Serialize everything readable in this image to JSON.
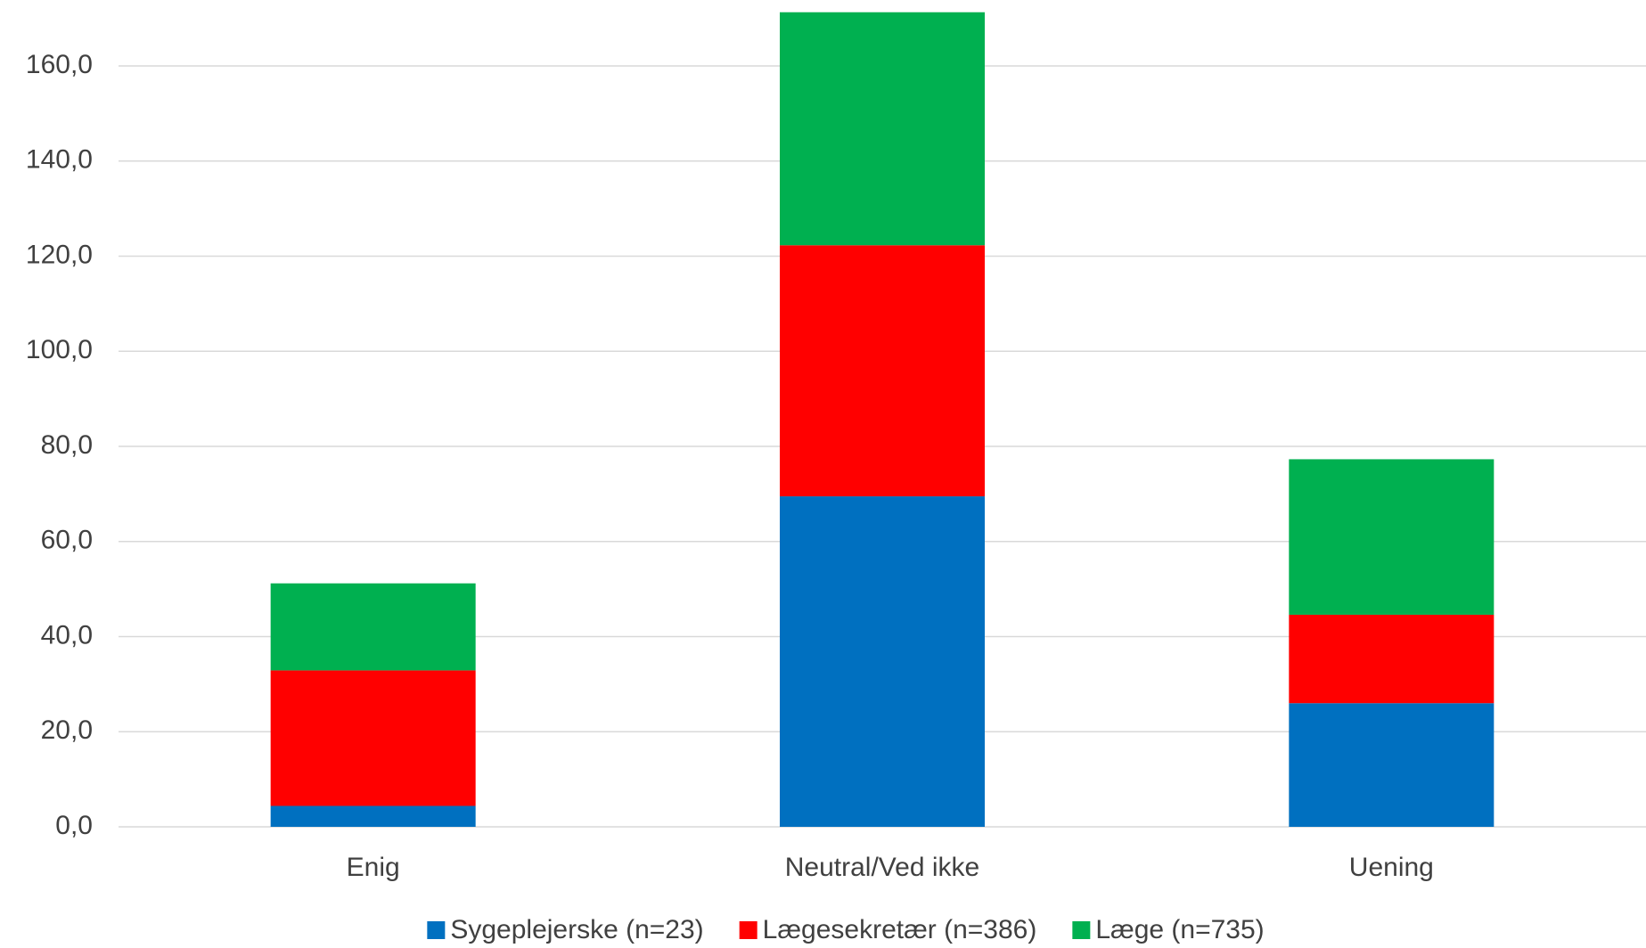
{
  "chart_data": {
    "type": "stacked-bar",
    "categories": [
      "Enig",
      "Neutral/Ved ikke",
      "Uening"
    ],
    "series": [
      {
        "name": "Sygeplejerske (n=23)",
        "color": "#0070c0",
        "values": [
          4.4,
          69.5,
          26.0
        ]
      },
      {
        "name": "Lægesekretær (n=386)",
        "color": "#ff0000",
        "values": [
          28.5,
          52.8,
          18.6
        ]
      },
      {
        "name": "Læge (n=735)",
        "color": "#00b050",
        "values": [
          18.3,
          49.0,
          32.7
        ]
      }
    ],
    "ylim": [
      0,
      172
    ],
    "yticks": [
      {
        "value": 0,
        "label": "0,0"
      },
      {
        "value": 20,
        "label": "20,0"
      },
      {
        "value": 40,
        "label": "40,0"
      },
      {
        "value": 60,
        "label": "60,0"
      },
      {
        "value": 80,
        "label": "80,0"
      },
      {
        "value": 100,
        "label": "100,0"
      },
      {
        "value": 120,
        "label": "120,0"
      },
      {
        "value": 140,
        "label": "140,0"
      },
      {
        "value": 160,
        "label": "160,0"
      }
    ],
    "grid": true,
    "legend": "bottom"
  }
}
